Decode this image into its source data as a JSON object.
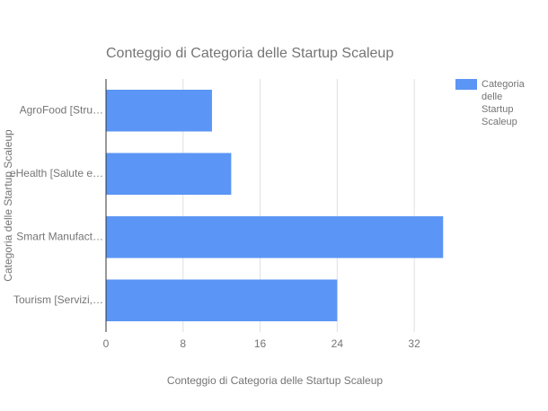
{
  "chart_data": {
    "type": "bar",
    "orientation": "horizontal",
    "title": "Conteggio di Categoria delle Startup Scaleup",
    "x_label": "Conteggio di Categoria delle Startup Scaleup",
    "y_label": "Categoria delle Startup Scaleup",
    "categories": [
      "AgroFood [Stru…",
      "eHealth [Salute e…",
      "Smart Manufact…",
      "Tourism [Servizi,…"
    ],
    "series": [
      {
        "name": "Categoria delle Startup Scaleup",
        "color": "#5b95f5",
        "values": [
          11,
          13,
          35,
          24
        ]
      }
    ],
    "xlim": [
      0,
      36
    ],
    "xticks": [
      0,
      8,
      16,
      24,
      32
    ],
    "grid": true,
    "legend": "right"
  }
}
